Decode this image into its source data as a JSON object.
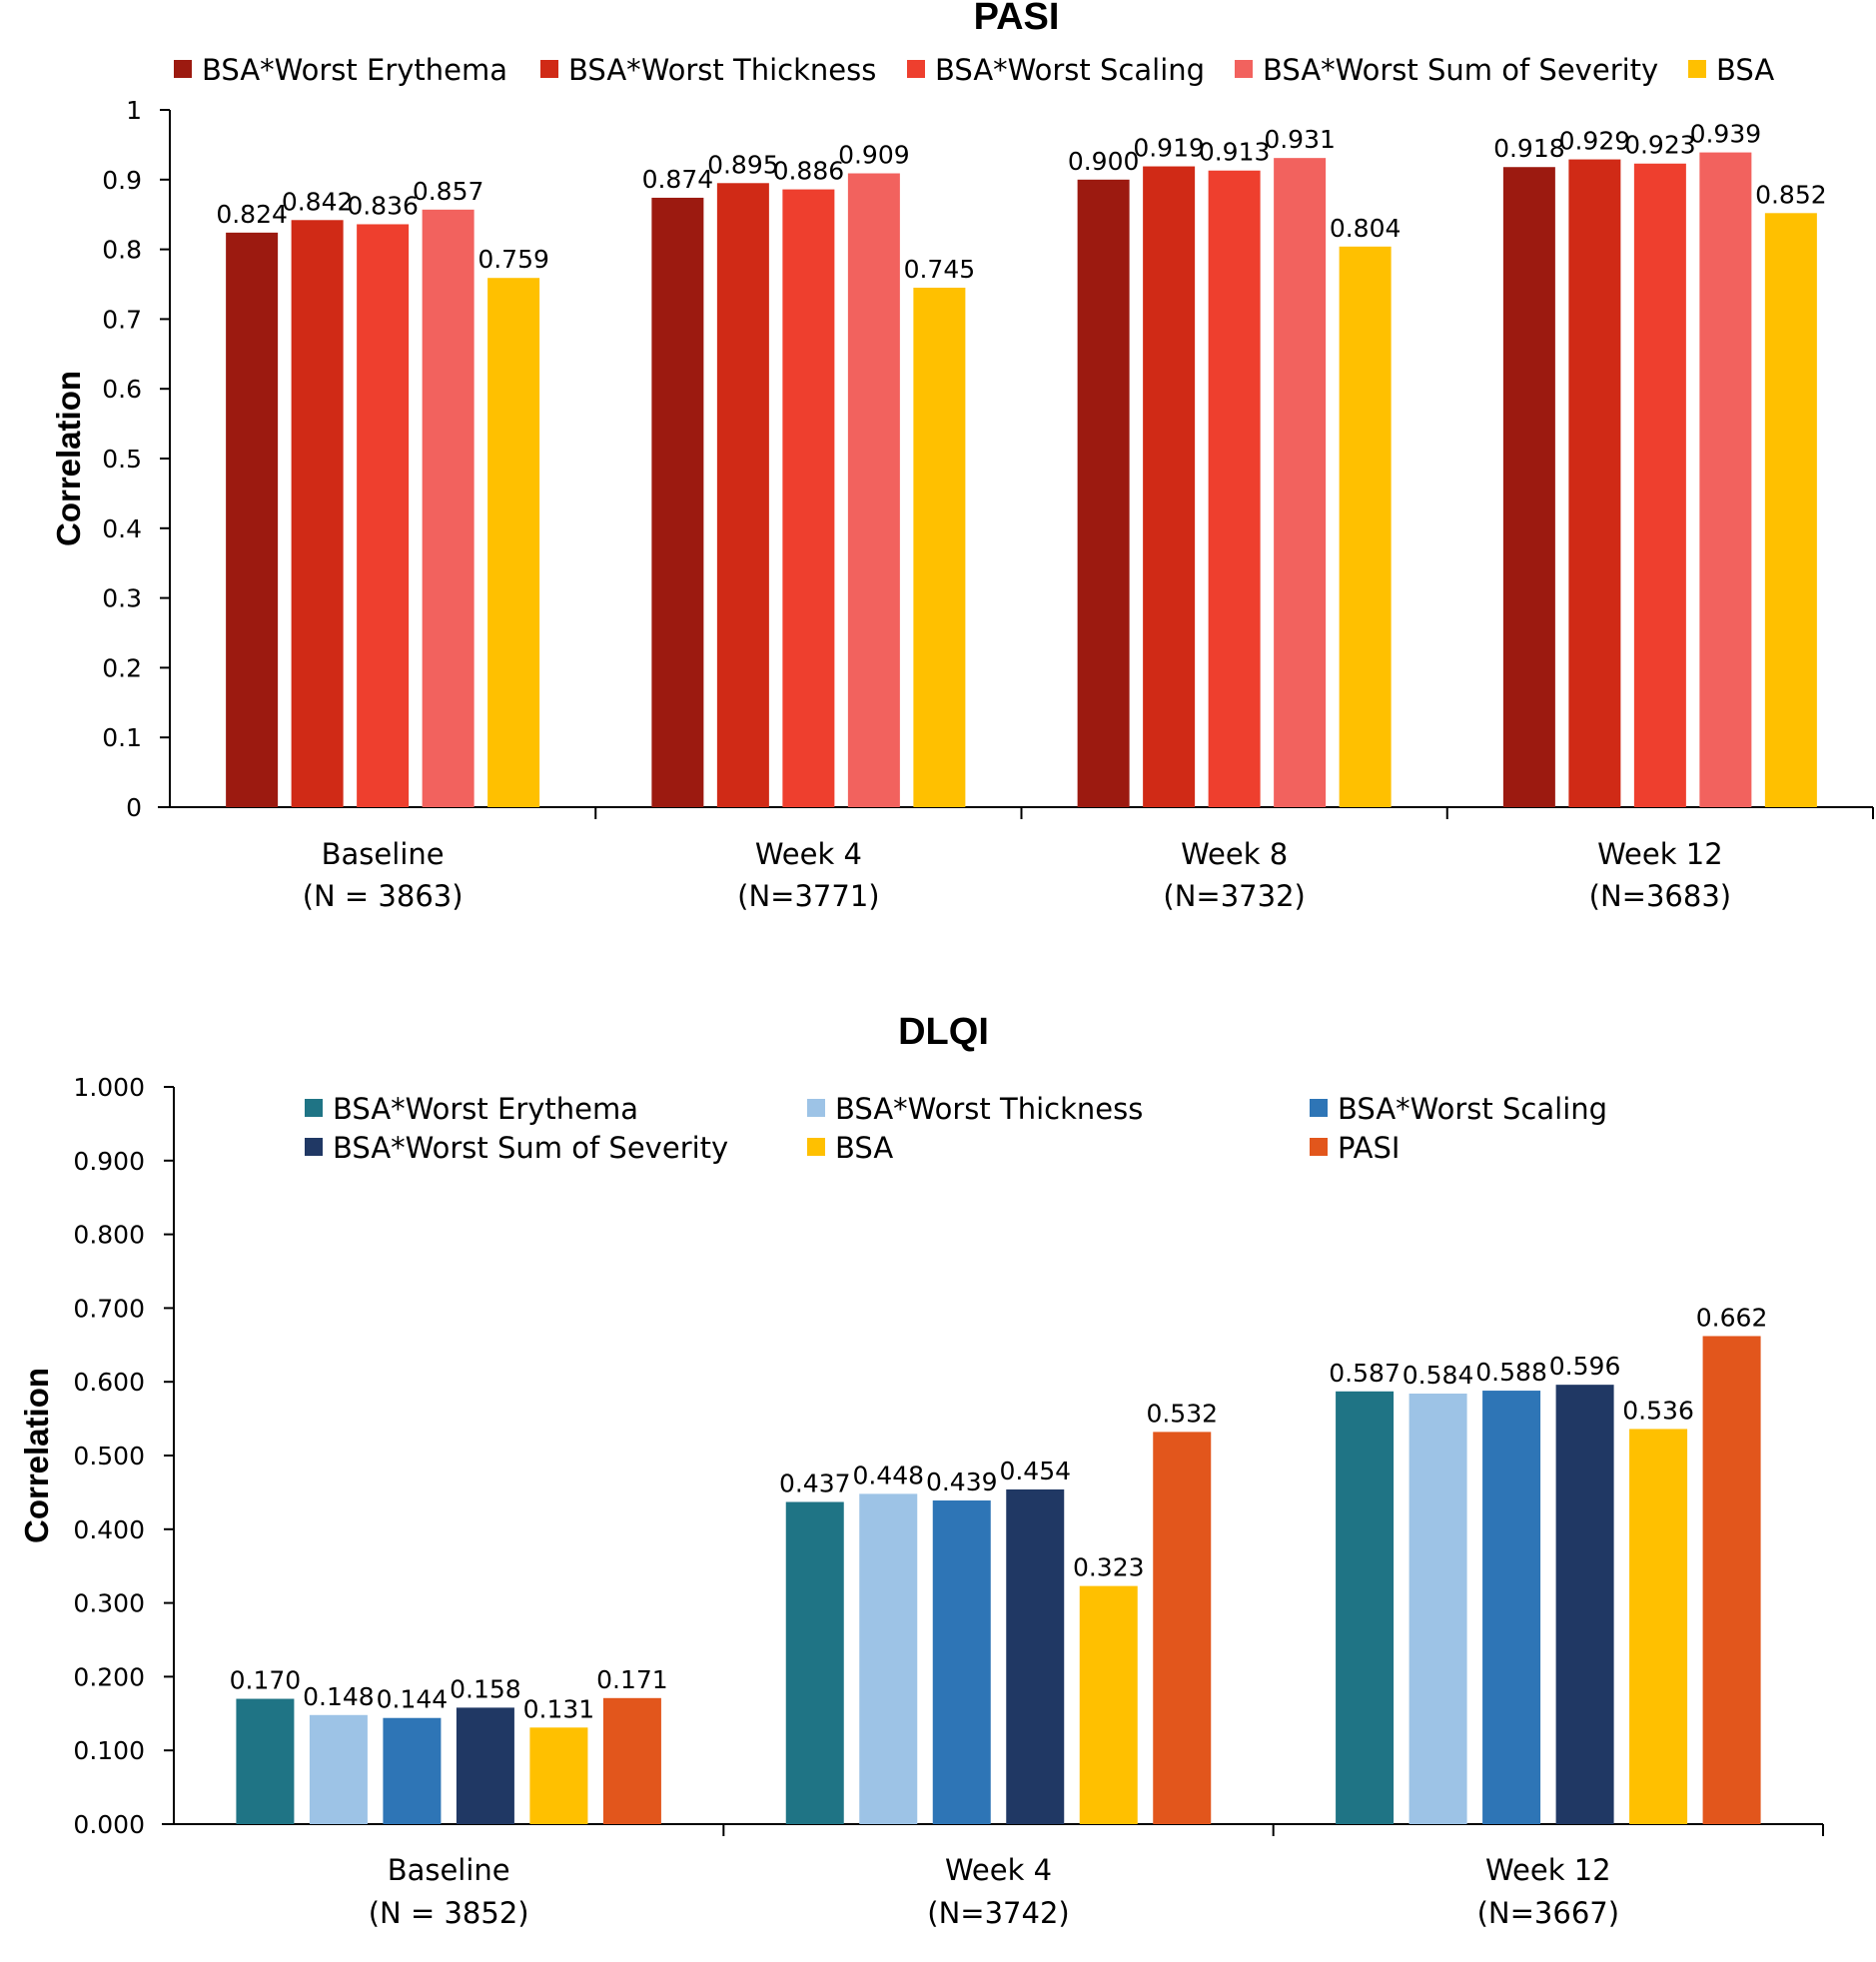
{
  "chart_data": [
    {
      "type": "bar",
      "title": "PASI",
      "xlabel": "",
      "ylabel": "Correlation",
      "ylim": [
        0,
        1
      ],
      "yticks": [
        "0",
        "0.1",
        "0.2",
        "0.3",
        "0.4",
        "0.5",
        "0.6",
        "0.7",
        "0.8",
        "0.9",
        "1"
      ],
      "legend_position": "top",
      "categories": [
        "Baseline",
        "Week 4",
        "Week 8",
        "Week 12"
      ],
      "category_n": [
        "(N = 3863)",
        "(N=3771)",
        "(N=3732)",
        "(N=3683)"
      ],
      "series": [
        {
          "name": "BSA*Worst Erythema",
          "color": "#9C1A10",
          "values": [
            0.824,
            0.874,
            0.9,
            0.918
          ],
          "labels": [
            "0.824",
            "0.874",
            "0.900",
            "0.918"
          ]
        },
        {
          "name": "BSA*Worst Thickness",
          "color": "#D02A16",
          "values": [
            0.842,
            0.895,
            0.919,
            0.929
          ],
          "labels": [
            "0.842",
            "0.895",
            "0.919",
            "0.929"
          ]
        },
        {
          "name": "BSA*Worst Scaling",
          "color": "#EE3F2E",
          "values": [
            0.836,
            0.886,
            0.913,
            0.923
          ],
          "labels": [
            "0.836",
            "0.886",
            "0.913",
            "0.923"
          ]
        },
        {
          "name": "BSA*Worst Sum of Severity",
          "color": "#F2625E",
          "values": [
            0.857,
            0.909,
            0.931,
            0.939
          ],
          "labels": [
            "0.857",
            "0.909",
            "0.931",
            "0.939"
          ]
        },
        {
          "name": "BSA",
          "color": "#FFC000",
          "values": [
            0.759,
            0.745,
            0.804,
            0.852
          ],
          "labels": [
            "0.759",
            "0.745",
            "0.804",
            "0.852"
          ]
        }
      ]
    },
    {
      "type": "bar",
      "title": "DLQI",
      "xlabel": "",
      "ylabel": "Correlation",
      "ylim": [
        0,
        1
      ],
      "yticks": [
        "0.000",
        "0.100",
        "0.200",
        "0.300",
        "0.400",
        "0.500",
        "0.600",
        "0.700",
        "0.800",
        "0.900",
        "1.000"
      ],
      "legend_position": "top",
      "categories": [
        "Baseline",
        "Week 4",
        "Week 12"
      ],
      "category_n": [
        "(N = 3852)",
        "(N=3742)",
        "(N=3667)"
      ],
      "series": [
        {
          "name": "BSA*Worst Erythema",
          "color": "#1F7485",
          "values": [
            0.17,
            0.437,
            0.587
          ],
          "labels": [
            "0.170",
            "0.437",
            "0.587"
          ]
        },
        {
          "name": "BSA*Worst Thickness",
          "color": "#9DC3E6",
          "values": [
            0.148,
            0.448,
            0.584
          ],
          "labels": [
            "0.148",
            "0.448",
            "0.584"
          ]
        },
        {
          "name": "BSA*Worst Scaling",
          "color": "#2E75B6",
          "values": [
            0.144,
            0.439,
            0.588
          ],
          "labels": [
            "0.144",
            "0.439",
            "0.588"
          ]
        },
        {
          "name": "BSA*Worst Sum of Severity",
          "color": "#203864",
          "values": [
            0.158,
            0.454,
            0.596
          ],
          "labels": [
            "0.158",
            "0.454",
            "0.596"
          ]
        },
        {
          "name": "BSA",
          "color": "#FFC000",
          "values": [
            0.131,
            0.323,
            0.536
          ],
          "labels": [
            "0.131",
            "0.323",
            "0.536"
          ]
        },
        {
          "name": "PASI",
          "color": "#E2561C",
          "values": [
            0.171,
            0.532,
            0.662
          ],
          "labels": [
            "0.171",
            "0.532",
            "0.662"
          ]
        }
      ]
    }
  ]
}
